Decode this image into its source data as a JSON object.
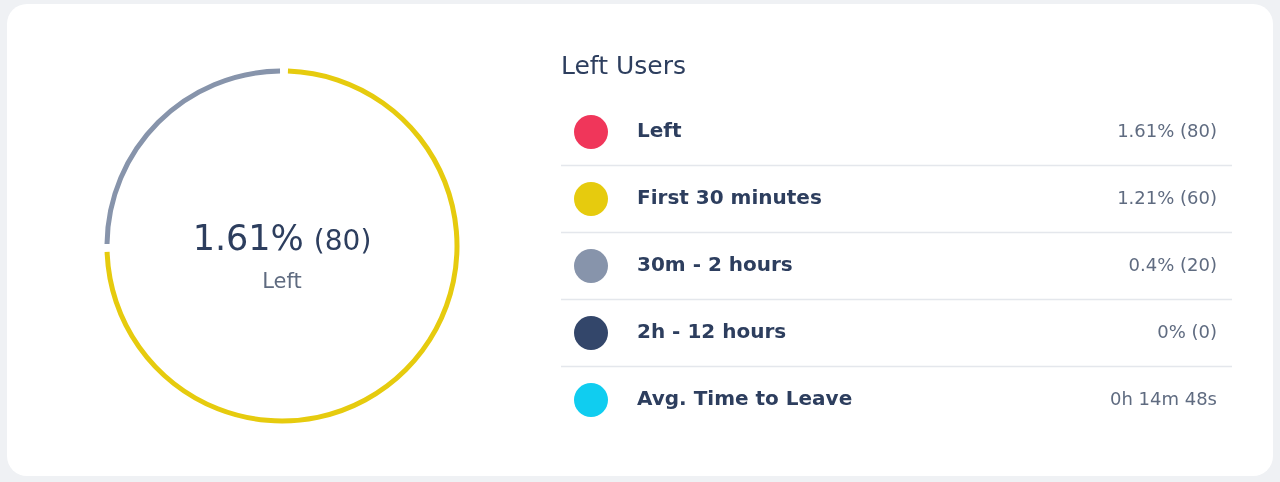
{
  "chart_data": {
    "type": "donut",
    "legend": "right",
    "legend_title": "Left Users",
    "categories": [
      "Left",
      "First 30 minutes",
      "30m - 2 hours",
      "2h - 12 hours",
      "Avg. Time to Leave"
    ],
    "values": [
      null,
      60,
      20,
      0,
      null
    ],
    "colors": [
      "#f0365a",
      "#e6cb0e",
      "#8794ab",
      "#33466a",
      "#10cdf0"
    ],
    "value_labels": [
      "1.61% (80)",
      "1.21% (60)",
      "0.4% (20)",
      "0% (0)",
      "0h 14m 48s"
    ],
    "annotations": [
      "1.61% (80)",
      "Left"
    ]
  }
}
